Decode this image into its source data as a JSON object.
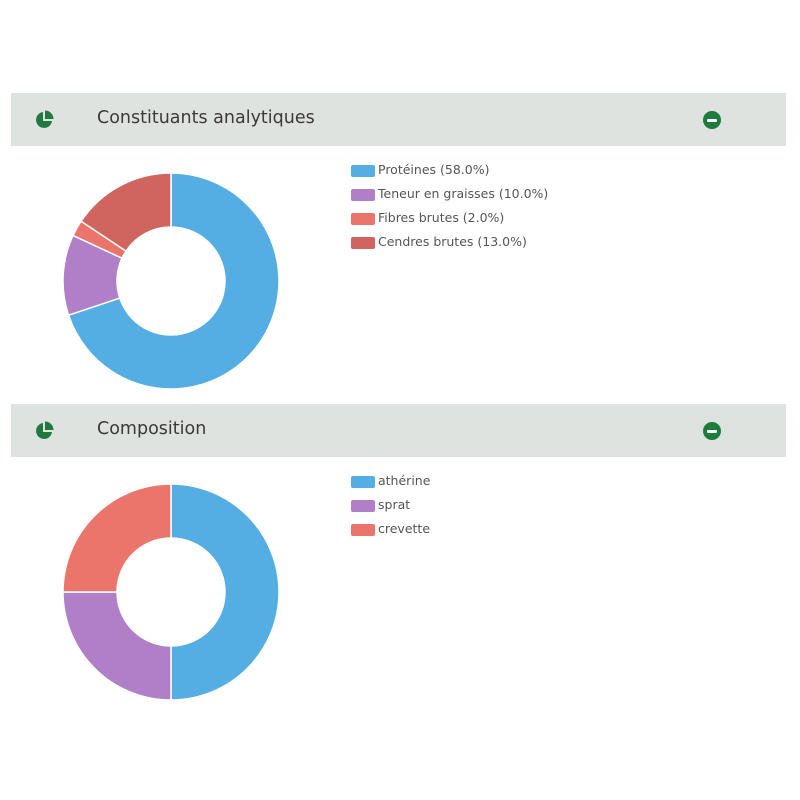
{
  "colors": {
    "header_bg": "#dfe3df",
    "icon_green": "#1e7a3e",
    "blue": "#55aee3",
    "purple": "#b07fc7",
    "salmon": "#ec756b",
    "brick": "#cf655e"
  },
  "panels": [
    {
      "title": "Constituants analytiques",
      "icon": "pie-chart-icon",
      "collapse_icon": "minus-circle-icon"
    },
    {
      "title": "Composition",
      "icon": "pie-chart-icon",
      "collapse_icon": "minus-circle-icon"
    }
  ],
  "chart_data": [
    {
      "type": "pie",
      "donut": true,
      "title": "Constituants analytiques",
      "legend_position": "right",
      "categories": [
        "Protéines (58.0%)",
        "Teneur en graisses (10.0%)",
        "Fibres brutes (2.0%)",
        "Cendres brutes (13.0%)"
      ],
      "values": [
        58.0,
        10.0,
        2.0,
        13.0
      ],
      "colors": [
        "#55aee3",
        "#b07fc7",
        "#ec756b",
        "#cf655e"
      ]
    },
    {
      "type": "pie",
      "donut": true,
      "title": "Composition",
      "legend_position": "right",
      "categories": [
        "athérine",
        "sprat",
        "crevette"
      ],
      "values": [
        50,
        25,
        25
      ],
      "colors": [
        "#55aee3",
        "#b07fc7",
        "#ec756b"
      ]
    }
  ]
}
